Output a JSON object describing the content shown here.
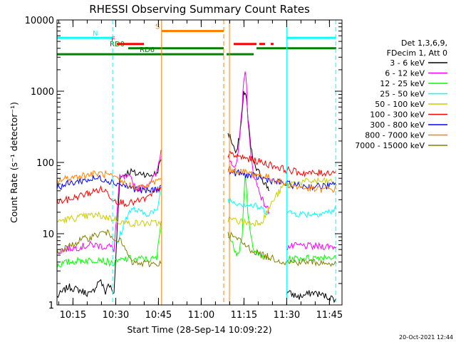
{
  "chart_data": {
    "type": "line",
    "title": "RHESSI Observing Summary Count Rates",
    "xlabel": "Start Time (28-Sep-14 10:09:22)",
    "ylabel": "Count Rate (s⁻¹ detector⁻¹)",
    "yscale": "log",
    "ylim": [
      1,
      10000
    ],
    "xlim_minutes": [
      0,
      100
    ],
    "x_ticks": [
      {
        "t": 5.6,
        "label": "10:15"
      },
      {
        "t": 20.6,
        "label": "10:30"
      },
      {
        "t": 35.6,
        "label": "10:45"
      },
      {
        "t": 50.6,
        "label": "11:00"
      },
      {
        "t": 65.6,
        "label": "11:15"
      },
      {
        "t": 80.6,
        "label": "11:30"
      },
      {
        "t": 95.6,
        "label": "11:45"
      }
    ],
    "y_ticks": [
      {
        "v": 1,
        "label": "1"
      },
      {
        "v": 10,
        "label": "10"
      },
      {
        "v": 100,
        "label": "100"
      },
      {
        "v": 1000,
        "label": "1000"
      },
      {
        "v": 10000,
        "label": "10000"
      }
    ],
    "legend": {
      "placement": "right",
      "header": [
        "Det 1,3,6,9,",
        "FDecim 1, Att 0"
      ]
    },
    "series": [
      {
        "name": "3 - 6 keV",
        "color": "#000000",
        "segments": [
          {
            "t": [
              0,
              4,
              8,
              12,
              15,
              17,
              18,
              20,
              22,
              24,
              26,
              28,
              30,
              32,
              35,
              36.5
            ],
            "v": [
              1.3,
              1.8,
              1.6,
              1.4,
              2.3,
              1.5,
              2.0,
              1.4,
              60,
              70,
              75,
              68,
              72,
              65,
              70,
              110
            ]
          },
          {
            "t": [
              60,
              61,
              62,
              63,
              64,
              65,
              65.5,
              66,
              66.5,
              67,
              68,
              69,
              70,
              71,
              72,
              73,
              74,
              74.5
            ],
            "v": [
              260,
              220,
              160,
              150,
              220,
              500,
              900,
              1000,
              800,
              400,
              160,
              100,
              80,
              70,
              60,
              50,
              45,
              40
            ]
          },
          {
            "t": [
              80.5,
              85,
              90,
              95,
              98
            ],
            "v": [
              1.5,
              1.3,
              1.5,
              1.3,
              1.2
            ]
          }
        ]
      },
      {
        "name": "6 - 12 keV",
        "color": "#ff00ff",
        "segments": [
          {
            "t": [
              0,
              4,
              8,
              12,
              15,
              17,
              18,
              20,
              22,
              24,
              26,
              28,
              30,
              32,
              35,
              36.5
            ],
            "v": [
              5.5,
              6.2,
              6.5,
              7.0,
              6.8,
              6.5,
              6.8,
              6.0,
              60,
              62,
              58,
              42,
              45,
              50,
              70,
              150
            ]
          },
          {
            "t": [
              60,
              61,
              62,
              63,
              64,
              65,
              65.5,
              66,
              66.5,
              67,
              68,
              69,
              70,
              71,
              72,
              73,
              74,
              74.5
            ],
            "v": [
              120,
              110,
              90,
              90,
              200,
              600,
              1500,
              1900,
              1200,
              400,
              120,
              70,
              50,
              40,
              30,
              25,
              22,
              20
            ]
          },
          {
            "t": [
              80.5,
              85,
              90,
              95,
              98
            ],
            "v": [
              6.5,
              6.8,
              6.6,
              6.7,
              6.5
            ]
          }
        ]
      },
      {
        "name": "12 - 25 keV",
        "color": "#00ff00",
        "segments": [
          {
            "t": [
              0,
              4,
              8,
              12,
              15,
              17,
              18,
              20,
              22,
              24,
              26,
              28,
              30,
              32,
              35,
              36.5
            ],
            "v": [
              3.6,
              4.0,
              4.2,
              4.2,
              4.5,
              4.0,
              4.0,
              3.8,
              4.2,
              4.4,
              4.5,
              4.3,
              4.5,
              4.3,
              4.5,
              15
            ]
          },
          {
            "t": [
              60,
              61,
              62,
              63,
              64,
              65,
              65.5,
              66,
              66.5,
              67,
              68,
              69,
              70,
              71,
              72,
              73,
              74,
              74.5
            ],
            "v": [
              10,
              8,
              6.5,
              5.5,
              6,
              10,
              30,
              60,
              40,
              18,
              9,
              6.5,
              5.5,
              5,
              4.8,
              4.5,
              4.6,
              4.5
            ]
          },
          {
            "t": [
              80.5,
              85,
              90,
              95,
              98
            ],
            "v": [
              4.3,
              4.5,
              4.6,
              4.8,
              4.5
            ]
          }
        ]
      },
      {
        "name": "25 - 50 keV",
        "color": "#00ffff",
        "segments": [
          {
            "t": [
              21,
              23,
              25,
              27,
              29,
              31,
              33,
              35,
              36.5
            ],
            "v": [
              7,
              12,
              20,
              22,
              20,
              19,
              20,
              20,
              45
            ]
          },
          {
            "t": [
              60,
              62,
              64,
              66,
              68,
              70,
              72,
              74
            ],
            "v": [
              30,
              28,
              27,
              26,
              25,
              24,
              22,
              20
            ]
          },
          {
            "t": [
              80.5,
              85,
              90,
              95,
              98
            ],
            "v": [
              20,
              19,
              19,
              20,
              22
            ]
          }
        ]
      },
      {
        "name": "50 - 100 keV",
        "color": "#cccc00",
        "segments": [
          {
            "t": [
              0,
              4,
              8,
              12,
              15,
              17,
              18,
              20,
              22,
              24,
              26,
              28,
              30,
              32,
              35,
              36.5
            ],
            "v": [
              15,
              16,
              17,
              18,
              18,
              17,
              17,
              16,
              15,
              14,
              14,
              14,
              14,
              14,
              14,
              14
            ]
          },
          {
            "t": [
              60,
              64,
              68,
              72,
              76,
              80,
              85,
              90,
              95,
              98
            ],
            "v": [
              16,
              15,
              14,
              15,
              30,
              50,
              52,
              55,
              54,
              53
            ]
          }
        ]
      },
      {
        "name": "100 - 300 keV",
        "color": "#ff0000",
        "segments": [
          {
            "t": [
              0,
              4,
              8,
              12,
              15,
              17,
              18,
              20,
              22,
              24,
              26,
              28,
              30,
              32,
              35,
              36.5
            ],
            "v": [
              28,
              30,
              34,
              38,
              42,
              40,
              36,
              30,
              28,
              27,
              27,
              28,
              30,
              32,
              40,
              45
            ]
          },
          {
            "t": [
              60,
              64,
              68,
              72,
              76,
              80,
              85,
              90,
              95,
              98
            ],
            "v": [
              130,
              120,
              110,
              100,
              90,
              80,
              72,
              70,
              72,
              75
            ]
          }
        ]
      },
      {
        "name": "300 - 800 keV",
        "color": "#0000ff",
        "segments": [
          {
            "t": [
              0,
              4,
              8,
              12,
              15,
              17,
              18,
              20,
              22,
              24,
              26,
              28,
              30,
              32,
              35,
              36.5
            ],
            "v": [
              45,
              50,
              55,
              58,
              60,
              58,
              56,
              52,
              50,
              47,
              44,
              42,
              40,
              40,
              42,
              48
            ]
          },
          {
            "t": [
              60,
              64,
              68,
              72,
              76,
              80,
              85,
              90,
              95,
              98
            ],
            "v": [
              75,
              70,
              65,
              60,
              55,
              50,
              47,
              46,
              47,
              48
            ]
          }
        ]
      },
      {
        "name": "800 - 7000 keV",
        "color": "#ff8000",
        "segments": [
          {
            "t": [
              0,
              4,
              8,
              12,
              15,
              17,
              18,
              20,
              22,
              24,
              26,
              28,
              30,
              32,
              35,
              36.5
            ],
            "v": [
              55,
              60,
              65,
              68,
              70,
              68,
              66,
              60,
              55,
              50,
              47,
              45,
              45,
              48,
              55,
              60
            ]
          },
          {
            "t": [
              60,
              64,
              68,
              72,
              76,
              80,
              85,
              90,
              95,
              98
            ],
            "v": [
              80,
              75,
              70,
              65,
              58,
              50,
              45,
              42,
              42,
              42
            ]
          }
        ]
      },
      {
        "name": "7000 - 15000 keV",
        "color": "#808000",
        "segments": [
          {
            "t": [
              0,
              4,
              8,
              12,
              15,
              17,
              18,
              20,
              22,
              24,
              26,
              28,
              30,
              32,
              35,
              36.5
            ],
            "v": [
              5.5,
              6.5,
              8,
              9,
              10,
              10.5,
              10,
              9,
              8,
              6,
              4,
              3.8,
              3.8,
              3.8,
              3.8,
              3.8
            ]
          },
          {
            "t": [
              60,
              64,
              68,
              72,
              76,
              80,
              85,
              90,
              95,
              98
            ],
            "v": [
              10,
              8,
              6,
              5,
              4.5,
              4,
              4,
              4,
              3.8,
              3.8
            ]
          }
        ]
      }
    ],
    "markers": [
      {
        "t": 0.0,
        "color": "#00ffff",
        "style": "solid"
      },
      {
        "t": 19.5,
        "color": "#00ffff",
        "style": "dashed"
      },
      {
        "t": 36.7,
        "color": "#ff8000",
        "style": "solid"
      },
      {
        "t": 58.5,
        "color": "#ff8000",
        "style": "dashed"
      },
      {
        "t": 60.5,
        "color": "#ff8000",
        "style": "solid"
      },
      {
        "t": 80.6,
        "color": "#00ffff",
        "style": "solid"
      },
      {
        "t": 97.8,
        "color": "#00ffff",
        "style": "dashed"
      }
    ],
    "flag_bars": [
      {
        "label": "N",
        "color": "#00ffff",
        "level": 5600,
        "label_t": 12.5,
        "spans": [
          [
            0,
            19.5
          ],
          [
            80.6,
            97.8
          ]
        ]
      },
      {
        "label": "S",
        "color": "#ff8000",
        "level": 7000,
        "label_t": 34.5,
        "spans": [
          [
            36.7,
            58.5
          ]
        ]
      },
      {
        "label": "F",
        "color": "#ff0000",
        "level": 4600,
        "label_t": 19.0,
        "spans": [
          [
            21,
            30.5
          ],
          [
            62,
            70
          ],
          [
            71,
            73
          ],
          [
            75,
            76
          ]
        ]
      },
      {
        "label": "RD0",
        "color": "#008000",
        "level": 4000,
        "label_t": 18.5,
        "spans": [
          [
            25,
            58.5
          ],
          [
            70,
            98
          ]
        ]
      },
      {
        "label": "RD6",
        "color": "#008000",
        "level": 3300,
        "label_t": 29.0,
        "spans": [
          [
            0,
            58.5
          ],
          [
            59.5,
            69
          ]
        ]
      }
    ],
    "annotation": "20-Oct-2021 12:44"
  }
}
